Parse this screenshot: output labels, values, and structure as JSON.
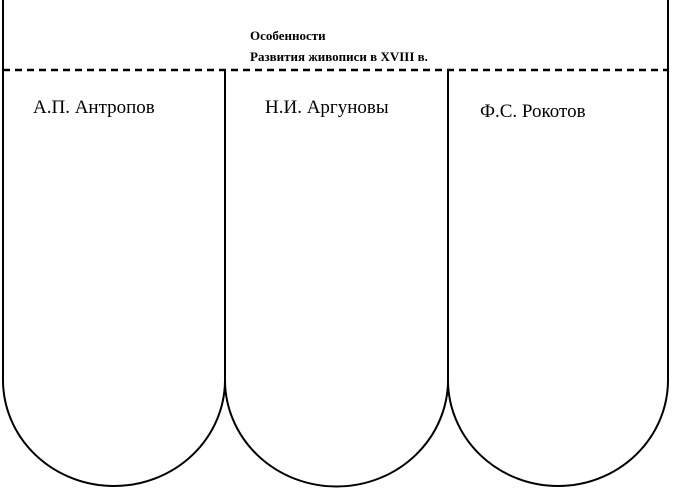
{
  "header": {
    "lines": [
      "Особенности",
      "Развития живописи в XVIII в."
    ]
  },
  "columns": [
    {
      "label": "А.П. Антропов"
    },
    {
      "label": "Н.И. Аргуновы"
    },
    {
      "label": "Ф.С. Рокотов"
    }
  ]
}
